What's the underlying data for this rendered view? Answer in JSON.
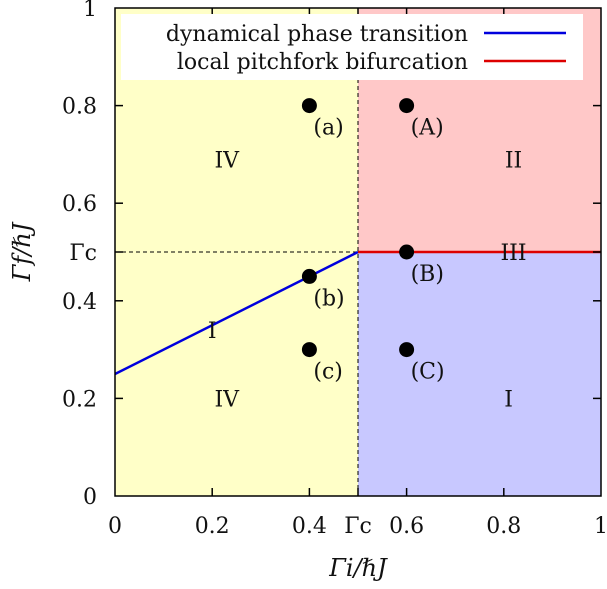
{
  "chart_data": {
    "type": "scatter",
    "xlabel": "Γi/ℏJ",
    "ylabel": "Γf/ℏJ",
    "xlim": [
      0,
      1
    ],
    "ylim": [
      0,
      1
    ],
    "x_ticks": [
      {
        "value": 0,
        "label": "0"
      },
      {
        "value": 0.2,
        "label": "0.2"
      },
      {
        "value": 0.4,
        "label": "0.4"
      },
      {
        "value": 0.5,
        "label": "Γc"
      },
      {
        "value": 0.6,
        "label": "0.6"
      },
      {
        "value": 0.8,
        "label": "0.8"
      },
      {
        "value": 1,
        "label": "1"
      }
    ],
    "y_ticks": [
      {
        "value": 0,
        "label": "0"
      },
      {
        "value": 0.2,
        "label": "0.2"
      },
      {
        "value": 0.4,
        "label": "0.4"
      },
      {
        "value": 0.5,
        "label": "Γc"
      },
      {
        "value": 0.6,
        "label": "0.6"
      },
      {
        "value": 0.8,
        "label": "0.8"
      },
      {
        "value": 1,
        "label": "1"
      }
    ],
    "gamma_c": 0.5,
    "regions": [
      {
        "x": [
          0,
          0.5
        ],
        "y": [
          0,
          1
        ],
        "color": "#ffffc8"
      },
      {
        "x": [
          0.5,
          1
        ],
        "y": [
          0.5,
          1
        ],
        "color": "#ffc8c8"
      },
      {
        "x": [
          0.5,
          1
        ],
        "y": [
          0,
          0.5
        ],
        "color": "#c8c8ff"
      }
    ],
    "series": [
      {
        "name": "dynamical phase transition",
        "color": "#0000dd",
        "x": [
          0,
          0.5
        ],
        "y": [
          0.25,
          0.5
        ]
      },
      {
        "name": "local pitchfork bifurcation",
        "color": "#dd0000",
        "x": [
          0.5,
          1
        ],
        "y": [
          0.5,
          0.5
        ]
      }
    ],
    "points": [
      {
        "label": "(a)",
        "x": 0.4,
        "y": 0.8
      },
      {
        "label": "(b)",
        "x": 0.4,
        "y": 0.45
      },
      {
        "label": "(c)",
        "x": 0.4,
        "y": 0.3
      },
      {
        "label": "(A)",
        "x": 0.6,
        "y": 0.8
      },
      {
        "label": "(B)",
        "x": 0.6,
        "y": 0.5
      },
      {
        "label": "(C)",
        "x": 0.6,
        "y": 0.3
      }
    ],
    "region_labels": [
      {
        "text": "IV",
        "x": 0.23,
        "y": 0.69
      },
      {
        "text": "IV",
        "x": 0.23,
        "y": 0.2
      },
      {
        "text": "I",
        "x": 0.2,
        "y": 0.34
      },
      {
        "text": "II",
        "x": 0.82,
        "y": 0.69
      },
      {
        "text": "III",
        "x": 0.82,
        "y": 0.5
      },
      {
        "text": "I",
        "x": 0.81,
        "y": 0.2
      }
    ],
    "legend_position": "top",
    "grid": false
  }
}
